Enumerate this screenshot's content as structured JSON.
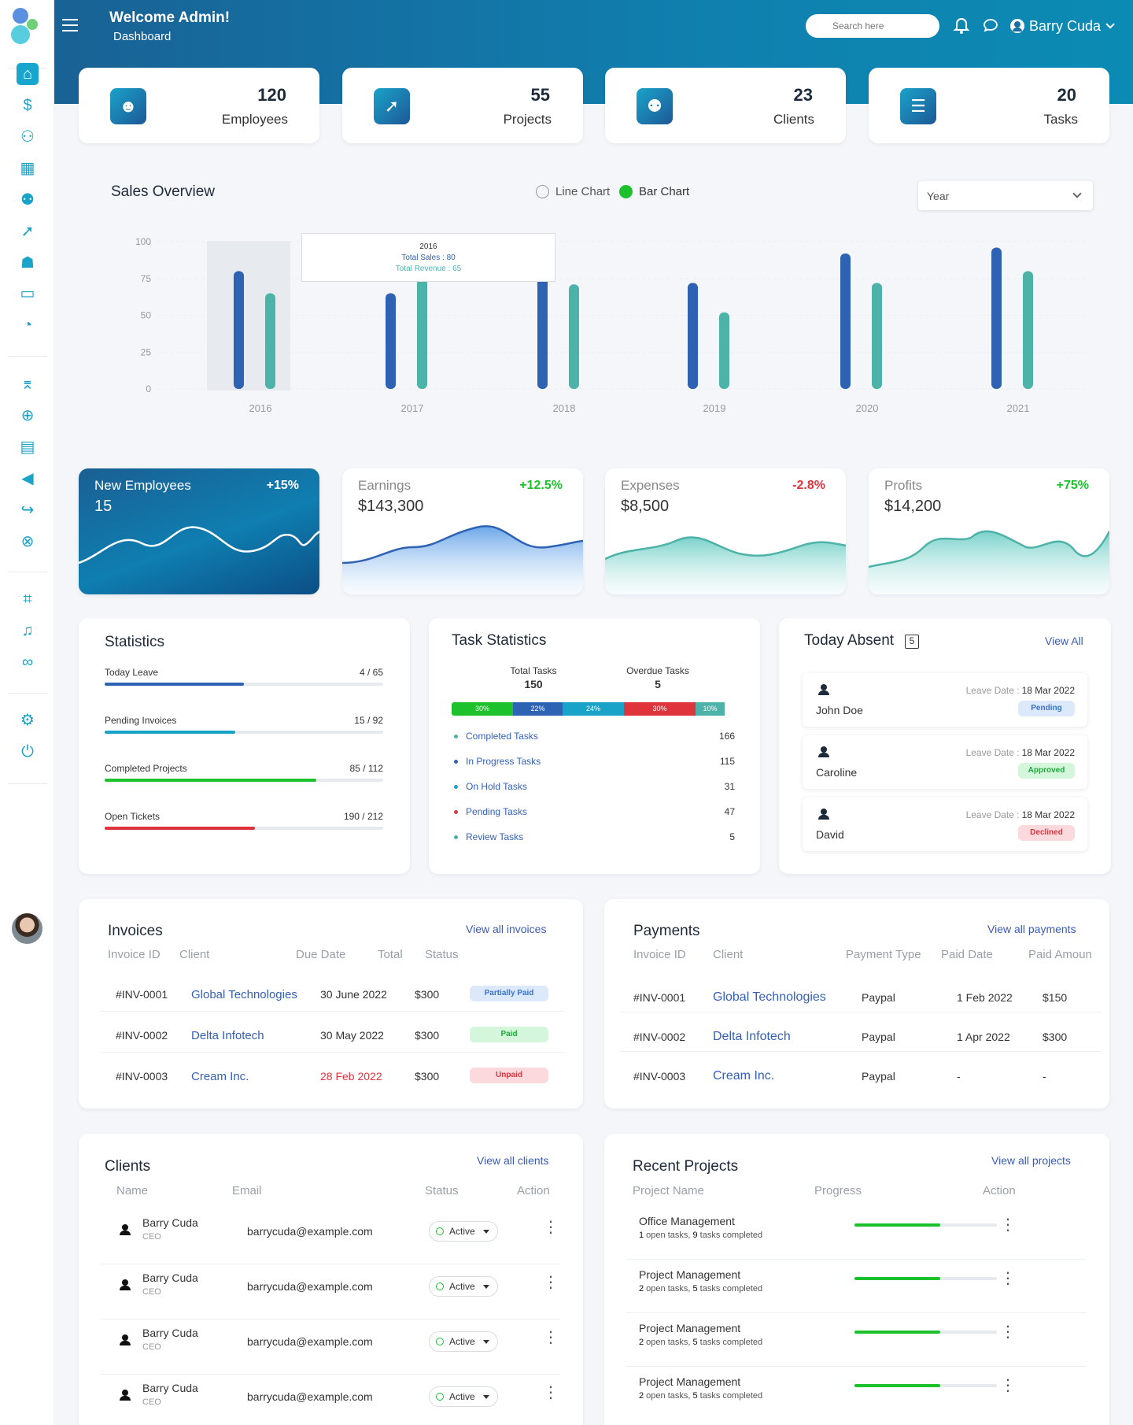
{
  "header": {
    "welcome": "Welcome Admin!",
    "subtitle": "Dashboard",
    "search_placeholder": "Search here",
    "user": "Barry Cuda"
  },
  "sidebar": {
    "items": [
      "home-icon",
      "dollar-file-icon",
      "users-icon",
      "calendar-icon",
      "team-icon",
      "rocket-icon",
      "spy-icon",
      "ticket-icon",
      "pie-chart-icon",
      "graduation-cap-icon",
      "crosshair-icon",
      "book-icon",
      "megaphone-icon",
      "logout-arrow-icon",
      "cancel-circle-icon",
      "crop-icon",
      "bell-icon",
      "user-group-icon",
      "gear-icon",
      "power-icon"
    ]
  },
  "stats": [
    {
      "value": "120",
      "label": "Employees",
      "icon": "user-icon"
    },
    {
      "value": "55",
      "label": "Projects",
      "icon": "rocket-icon"
    },
    {
      "value": "23",
      "label": "Clients",
      "icon": "group-icon"
    },
    {
      "value": "20",
      "label": "Tasks",
      "icon": "checklist-icon"
    }
  ],
  "sales": {
    "title": "Sales Overview",
    "toggle_line": "Line Chart",
    "toggle_bar": "Bar Chart",
    "select": "Year",
    "tooltip": {
      "year": "2016",
      "sales": "Total Sales : 80",
      "revenue": "Total Revenue : 65"
    }
  },
  "chart_data": {
    "type": "bar",
    "categories": [
      "2016",
      "2017",
      "2018",
      "2019",
      "2020",
      "2021"
    ],
    "series": [
      {
        "name": "Total Sales",
        "color": "#2e62b3",
        "values": [
          80,
          65,
          88,
          72,
          92,
          96
        ]
      },
      {
        "name": "Total Revenue",
        "color": "#4db3a9",
        "values": [
          65,
          75,
          71,
          52,
          72,
          80
        ]
      }
    ],
    "yticks": [
      "100",
      "75",
      "50",
      "25",
      "0"
    ],
    "ylim": [
      0,
      100
    ]
  },
  "kpis": [
    {
      "title": "New Employees",
      "value": "15",
      "change": "+15%",
      "color": "#ffffff"
    },
    {
      "title": "Earnings",
      "value": "$143,300",
      "change": "+12.5%",
      "color": "#1cc12c"
    },
    {
      "title": "Expenses",
      "value": "$8,500",
      "change": "-2.8%",
      "color": "#e0343c"
    },
    {
      "title": "Profits",
      "value": "$14,200",
      "change": "+75%",
      "color": "#1cc12c"
    }
  ],
  "statistics": {
    "title": "Statistics",
    "rows": [
      {
        "label": "Today Leave",
        "value": "4 / 65",
        "fill": 0.5,
        "color": "#2e62b3"
      },
      {
        "label": "Pending Invoices",
        "value": "15 / 92",
        "fill": 0.47,
        "color": "#1aa3c9"
      },
      {
        "label": "Completed Projects",
        "value": "85 / 112",
        "fill": 0.76,
        "color": "#1cc12c"
      },
      {
        "label": "Open Tickets",
        "value": "190 / 212",
        "fill": 0.54,
        "color": "#e0343c"
      }
    ]
  },
  "task_stats": {
    "title": "Task Statistics",
    "total_label": "Total Tasks",
    "total": "150",
    "overdue_label": "Overdue Tasks",
    "overdue": "5",
    "segments": [
      {
        "pct": "30%",
        "color": "#1cc12c"
      },
      {
        "pct": "22%",
        "color": "#2e62b3"
      },
      {
        "pct": "24%",
        "color": "#1aa3c9"
      },
      {
        "pct": "30%",
        "color": "#e0343c"
      },
      {
        "pct": "10%",
        "color": "#4db3a9"
      }
    ],
    "rows": [
      {
        "label": "Completed Tasks",
        "value": "166",
        "color": "#4db3a9"
      },
      {
        "label": "In Progress Tasks",
        "value": "115",
        "color": "#2e62b3"
      },
      {
        "label": "On Hold Tasks",
        "value": "31",
        "color": "#1aa3c9"
      },
      {
        "label": "Pending Tasks",
        "value": "47",
        "color": "#e0343c"
      },
      {
        "label": "Review Tasks",
        "value": "5",
        "color": "#4db3a9"
      }
    ]
  },
  "absent": {
    "title": "Today Absent",
    "count": "5",
    "view_all": "View All",
    "leave_label": "Leave Date :",
    "items": [
      {
        "name": "John Doe",
        "date": "18 Mar 2022",
        "status": "Pending",
        "bg": "#dbe9fb",
        "fg": "#3b73c9"
      },
      {
        "name": "Caroline",
        "date": "18 Mar 2022",
        "status": "Approved",
        "bg": "#d4f6db",
        "fg": "#1cac3a"
      },
      {
        "name": "David",
        "date": "18 Mar 2022",
        "status": "Declined",
        "bg": "#fbd9dc",
        "fg": "#d8363f"
      }
    ]
  },
  "invoices": {
    "title": "Invoices",
    "view_all": "View all invoices",
    "headers": [
      "Invoice ID",
      "Client",
      "Due Date",
      "Total",
      "Status"
    ],
    "rows": [
      {
        "id": "#INV-0001",
        "client": "Global Technologies",
        "due": "30 June 2022",
        "total": "$300",
        "status": "Partially Paid",
        "bg": "#dbe9fb",
        "fg": "#3b73c9",
        "due_red": false
      },
      {
        "id": "#INV-0002",
        "client": "Delta Infotech",
        "due": "30 May 2022",
        "total": "$300",
        "status": "Paid",
        "bg": "#d4f6db",
        "fg": "#1cac3a",
        "due_red": false
      },
      {
        "id": "#INV-0003",
        "client": "Cream Inc.",
        "due": "28 Feb 2022",
        "total": "$300",
        "status": "Unpaid",
        "bg": "#fbd9dc",
        "fg": "#d8363f",
        "due_red": true
      }
    ]
  },
  "payments": {
    "title": "Payments",
    "view_all": "View all payments",
    "headers": [
      "Invoice ID",
      "Client",
      "Payment Type",
      "Paid Date",
      "Paid Amoun"
    ],
    "rows": [
      {
        "id": "#INV-0001",
        "client": "Global Technologies",
        "type": "Paypal",
        "date": "1 Feb 2022",
        "amount": "$150"
      },
      {
        "id": "#INV-0002",
        "client": "Delta Infotech",
        "type": "Paypal",
        "date": "1 Apr 2022",
        "amount": "$300"
      },
      {
        "id": "#INV-0003",
        "client": "Cream Inc.",
        "type": "Paypal",
        "date": "-",
        "amount": "-"
      }
    ]
  },
  "clients": {
    "title": "Clients",
    "view_all": "View all clients",
    "headers": [
      "Name",
      "Email",
      "Status",
      "Action"
    ],
    "rows": [
      {
        "name": "Barry Cuda",
        "role": "CEO",
        "email": "barrycuda@example.com",
        "status": "Active"
      },
      {
        "name": "Barry Cuda",
        "role": "CEO",
        "email": "barrycuda@example.com",
        "status": "Active"
      },
      {
        "name": "Barry Cuda",
        "role": "CEO",
        "email": "barrycuda@example.com",
        "status": "Active"
      },
      {
        "name": "Barry Cuda",
        "role": "CEO",
        "email": "barrycuda@example.com",
        "status": "Active"
      }
    ]
  },
  "projects": {
    "title": "Recent Projects",
    "view_all": "View all projects",
    "headers": [
      "Project Name",
      "Progress",
      "Action"
    ],
    "rows": [
      {
        "name": "Office Management",
        "open": "1",
        "open_text": " open tasks, ",
        "done": "9",
        "done_text": " tasks completed",
        "progress": 0.6
      },
      {
        "name": "Project Management",
        "open": "2",
        "open_text": " open tasks, ",
        "done": "5",
        "done_text": " tasks completed",
        "progress": 0.6
      },
      {
        "name": "Project Management",
        "open": "2",
        "open_text": " open tasks, ",
        "done": "5",
        "done_text": " tasks completed",
        "progress": 0.6
      },
      {
        "name": "Project Management",
        "open": "2",
        "open_text": " open tasks, ",
        "done": "5",
        "done_text": " tasks completed",
        "progress": 0.6
      }
    ]
  }
}
